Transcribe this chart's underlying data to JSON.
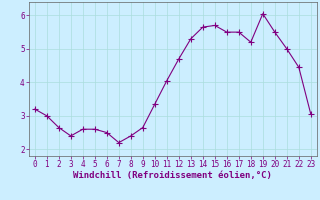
{
  "x": [
    0,
    1,
    2,
    3,
    4,
    5,
    6,
    7,
    8,
    9,
    10,
    11,
    12,
    13,
    14,
    15,
    16,
    17,
    18,
    19,
    20,
    21,
    22,
    23
  ],
  "y": [
    3.2,
    3.0,
    2.65,
    2.4,
    2.6,
    2.6,
    2.5,
    2.2,
    2.4,
    2.65,
    3.35,
    4.05,
    4.7,
    5.3,
    5.65,
    5.7,
    5.5,
    5.5,
    5.2,
    6.05,
    5.5,
    5.0,
    4.45,
    3.05
  ],
  "line_color": "#800080",
  "marker": "+",
  "marker_size": 4,
  "bg_color": "#cceeff",
  "grid_color": "#aadddd",
  "xlabel": "Windchill (Refroidissement éolien,°C)",
  "xlabel_color": "#800080",
  "tick_color": "#800080",
  "spine_color": "#606060",
  "xlim": [
    -0.5,
    23.5
  ],
  "ylim": [
    1.8,
    6.4
  ],
  "yticks": [
    2,
    3,
    4,
    5,
    6
  ],
  "xticks": [
    0,
    1,
    2,
    3,
    4,
    5,
    6,
    7,
    8,
    9,
    10,
    11,
    12,
    13,
    14,
    15,
    16,
    17,
    18,
    19,
    20,
    21,
    22,
    23
  ],
  "font_size": 5.5,
  "xlabel_font_size": 6.5,
  "line_width": 0.8,
  "marker_color": "#800080"
}
